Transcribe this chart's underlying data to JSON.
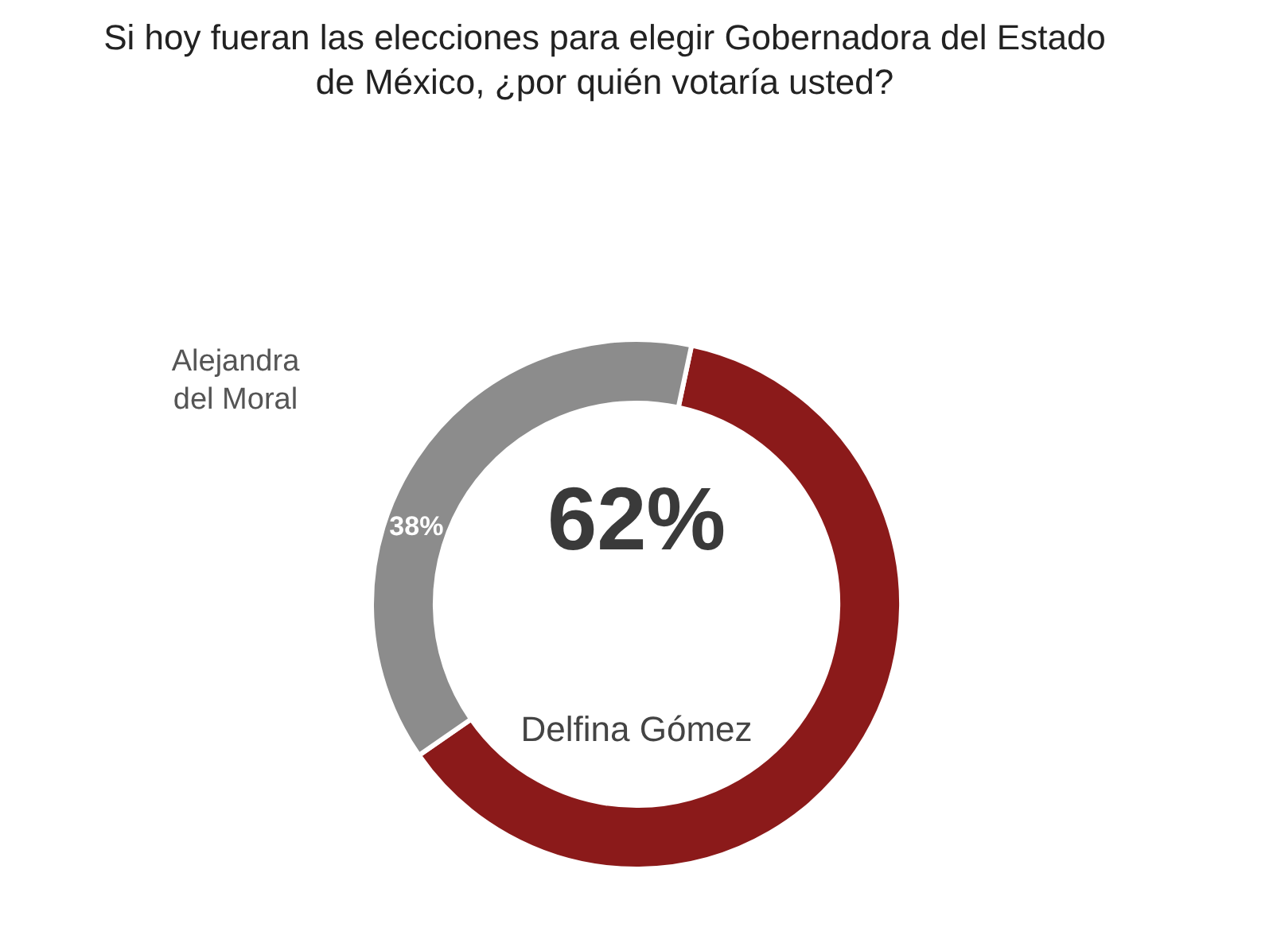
{
  "chart_data": {
    "type": "donut",
    "title": "Si hoy fueran las elecciones para elegir Gobernadora del Estado de México, ¿por quién votaría usted?",
    "categories": [
      "Delfina Gómez",
      "Alejandra del Moral"
    ],
    "values": [
      62,
      38
    ],
    "colors": [
      "#8b1a1a",
      "#8c8c8c"
    ],
    "value_labels": [
      "62%",
      "38%"
    ],
    "legend": false
  }
}
